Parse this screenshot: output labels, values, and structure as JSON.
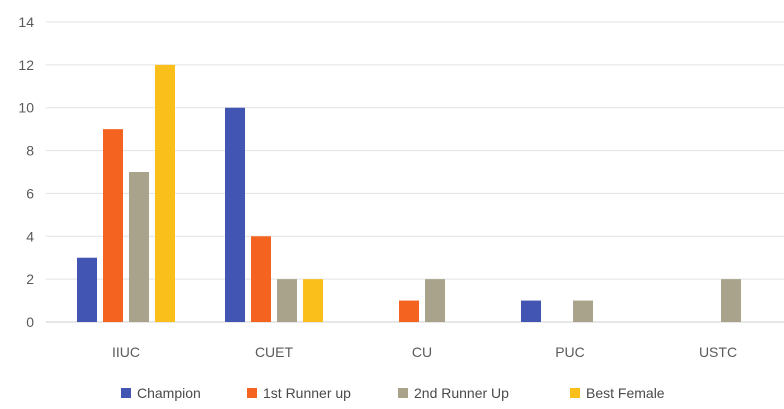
{
  "chart_data": {
    "type": "bar",
    "categories": [
      "IIUC",
      "CUET",
      "CU",
      "PUC",
      "USTC"
    ],
    "series": [
      {
        "name": "Champion",
        "values": [
          3,
          10,
          0,
          1,
          0
        ],
        "color": "#4355b3"
      },
      {
        "name": "1st Runner up",
        "values": [
          9,
          4,
          1,
          0,
          0
        ],
        "color": "#f4631f"
      },
      {
        "name": "2nd Runner Up",
        "values": [
          7,
          2,
          2,
          1,
          2
        ],
        "color": "#a8a38a"
      },
      {
        "name": "Best Female",
        "values": [
          12,
          2,
          0,
          0,
          0
        ],
        "color": "#fbbf1c"
      }
    ],
    "ylim": [
      0,
      14
    ],
    "yticks": [
      0,
      2,
      4,
      6,
      8,
      10,
      12,
      14
    ],
    "grid": true,
    "legend": "bottom"
  }
}
